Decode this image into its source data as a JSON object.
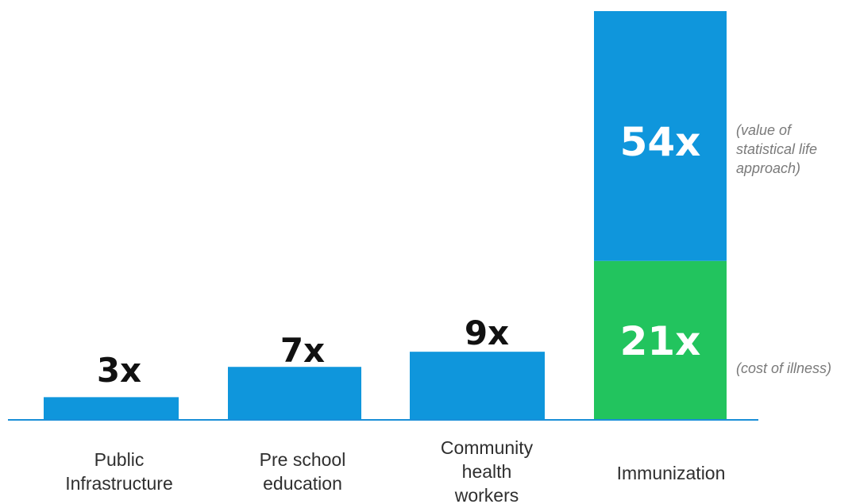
{
  "chart_data": {
    "type": "bar",
    "stacked": true,
    "categories": [
      "Public Infrastructure",
      "Pre school education",
      "Community health workers",
      "Immunization"
    ],
    "category_label_lines": [
      [
        "Public",
        "Infrastructure"
      ],
      [
        "Pre school",
        "education"
      ],
      [
        "Community",
        "health",
        "workers"
      ],
      [
        "Immunization"
      ]
    ],
    "values": [
      3,
      7,
      9,
      54
    ],
    "value_labels": [
      "3x",
      "7x",
      "9x",
      "54x"
    ],
    "segments": {
      "Immunization": [
        {
          "value": 21,
          "label": "21x",
          "annotation_lines": [
            "(cost of illness)"
          ],
          "color": "#22c45e"
        },
        {
          "value": 54,
          "label": "54x",
          "annotation_lines": [
            "(value of",
            "statistical life",
            "approach)"
          ],
          "color": "#0f96dc"
        }
      ]
    },
    "title": "",
    "xlabel": "",
    "ylabel": "",
    "ylim": [
      0,
      54
    ],
    "grid": false,
    "legend": "none"
  },
  "colors": {
    "bar": "#0f96dc",
    "cost_of_illness": "#22c45e",
    "axis": "#1a8fd8"
  }
}
